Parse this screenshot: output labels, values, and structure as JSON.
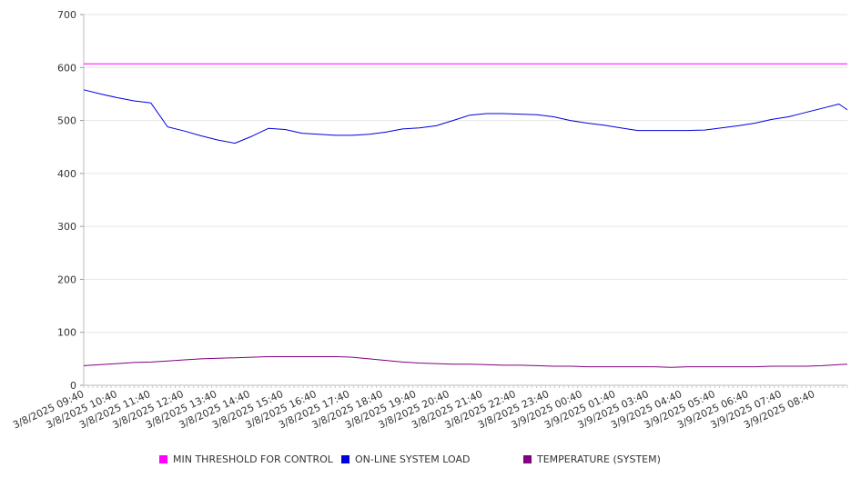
{
  "chart_data": {
    "type": "line",
    "title": "",
    "xlabel": "",
    "ylabel": "",
    "ylim": [
      0,
      700
    ],
    "yticks": [
      0,
      100,
      200,
      300,
      400,
      500,
      600,
      700
    ],
    "grid": true,
    "legend_position": "bottom",
    "x_tick_labels": [
      "3/8/2025 09:40",
      "3/8/2025 10:40",
      "3/8/2025 11:40",
      "3/8/2025 12:40",
      "3/8/2025 13:40",
      "3/8/2025 14:40",
      "3/8/2025 15:40",
      "3/8/2025 16:40",
      "3/8/2025 17:40",
      "3/8/2025 18:40",
      "3/8/2025 19:40",
      "3/8/2025 20:40",
      "3/8/2025 21:40",
      "3/8/2025 22:40",
      "3/8/2025 23:40",
      "3/9/2025 00:40",
      "3/9/2025 01:40",
      "3/9/2025 03:40",
      "3/9/2025 04:40",
      "3/9/2025 05:40",
      "3/9/2025 06:40",
      "3/9/2025 07:40",
      "3/9/2025 08:40"
    ],
    "x_hours": [
      0,
      0.5,
      1,
      1.5,
      2,
      2.5,
      3,
      3.5,
      4,
      4.5,
      5,
      5.5,
      6,
      6.5,
      7,
      7.5,
      8,
      8.5,
      9,
      9.5,
      10,
      10.5,
      11,
      11.5,
      12,
      12.5,
      13,
      13.5,
      14,
      14.5,
      15,
      15.5,
      16,
      16.5,
      17,
      17.5,
      18,
      18.5,
      19,
      19.5,
      20,
      20.5,
      21,
      21.5,
      22,
      22.5,
      22.75
    ],
    "series": [
      {
        "name": "MIN THRESHOLD FOR CONTROL",
        "color": "#ff00ff",
        "values": [
          607,
          607,
          607,
          607,
          607,
          607,
          607,
          607,
          607,
          607,
          607,
          607,
          607,
          607,
          607,
          607,
          607,
          607,
          607,
          607,
          607,
          607,
          607,
          607,
          607,
          607,
          607,
          607,
          607,
          607,
          607,
          607,
          607,
          607,
          607,
          607,
          607,
          607,
          607,
          607,
          607,
          607,
          607,
          607,
          607,
          607,
          607
        ]
      },
      {
        "name": "ON-LINE SYSTEM LOAD",
        "color": "#0000dd",
        "values": [
          558,
          550,
          543,
          537,
          533,
          488,
          480,
          471,
          463,
          457,
          470,
          485,
          483,
          476,
          474,
          472,
          472,
          474,
          478,
          484,
          486,
          490,
          500,
          510,
          513,
          513,
          512,
          511,
          507,
          500,
          495,
          491,
          486,
          481,
          481,
          481,
          481,
          482,
          486,
          490,
          495,
          502,
          507,
          515,
          523,
          531,
          520
        ]
      },
      {
        "name": "TEMPERATURE (SYSTEM)",
        "color": "#800080",
        "values": [
          37,
          39,
          41,
          43,
          44,
          46,
          48,
          50,
          51,
          52,
          53,
          54,
          54,
          54,
          54,
          54,
          53,
          50,
          47,
          44,
          42,
          41,
          40,
          40,
          39,
          38,
          38,
          37,
          36,
          36,
          35,
          35,
          35,
          35,
          35,
          34,
          35,
          35,
          35,
          35,
          35,
          36,
          36,
          36,
          37,
          39,
          40
        ]
      }
    ]
  },
  "legend": {
    "items": [
      {
        "label": "MIN THRESHOLD FOR CONTROL",
        "color": "#ff00ff"
      },
      {
        "label": "ON-LINE SYSTEM LOAD",
        "color": "#0000dd"
      },
      {
        "label": "TEMPERATURE (SYSTEM)",
        "color": "#800080"
      }
    ]
  }
}
